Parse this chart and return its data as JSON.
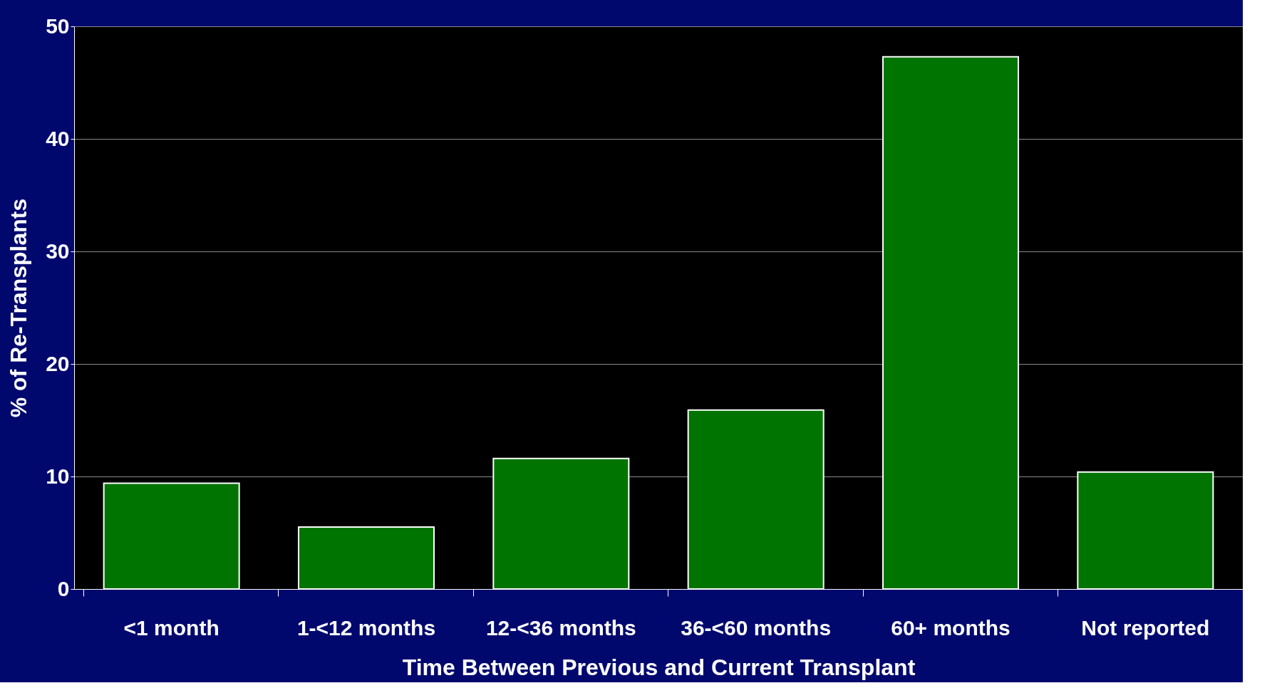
{
  "chart_data": {
    "type": "bar",
    "xlabel": "Time Between Previous and Current Transplant",
    "ylabel": "% of Re-Transplants",
    "categories": [
      "<1 month",
      "1-<12 months",
      "12-<36 months",
      "36-<60 months",
      "60+ months",
      "Not reported"
    ],
    "values": [
      9.4,
      5.5,
      11.6,
      15.9,
      47.3,
      10.4
    ],
    "color": "#007400",
    "ylim": [
      0,
      50
    ],
    "yticks": [
      0,
      10,
      20,
      30,
      40,
      50
    ],
    "grid": "y",
    "legend": false
  }
}
